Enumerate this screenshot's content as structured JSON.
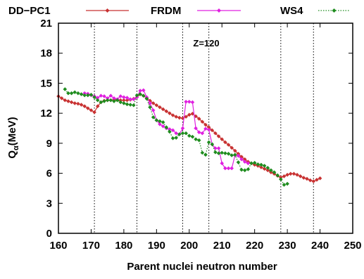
{
  "chart_data": {
    "type": "line",
    "annotation": "Z=120",
    "xlabel": "Parent nuclei neutron number",
    "ylabel_main": "Q",
    "ylabel_sub": "α",
    "ylabel_unit": "(MeV)",
    "xlim": [
      160,
      250
    ],
    "ylim": [
      0,
      21
    ],
    "xticks": [
      160,
      170,
      180,
      190,
      200,
      210,
      220,
      230,
      240,
      250
    ],
    "yticks": [
      0,
      3,
      6,
      9,
      12,
      15,
      18,
      21
    ],
    "shell_lines_x": [
      171,
      184,
      198,
      206,
      228,
      238
    ],
    "legend_position": "top",
    "series": [
      {
        "name": "DD−PC1",
        "color": "#c83232",
        "marker": "diamond",
        "line_style": "solid",
        "points": [
          [
            160,
            13.7
          ],
          [
            161,
            13.5
          ],
          [
            162,
            13.3
          ],
          [
            163,
            13.2
          ],
          [
            164,
            13.1
          ],
          [
            165,
            13.0
          ],
          [
            166,
            12.95
          ],
          [
            167,
            12.85
          ],
          [
            168,
            12.7
          ],
          [
            169,
            12.5
          ],
          [
            170,
            12.3
          ],
          [
            171,
            12.1
          ],
          [
            172,
            12.7
          ],
          [
            173,
            13.1
          ],
          [
            174,
            13.25
          ],
          [
            175,
            13.3
          ],
          [
            176,
            13.3
          ],
          [
            177,
            13.35
          ],
          [
            178,
            13.3
          ],
          [
            179,
            13.3
          ],
          [
            180,
            13.3
          ],
          [
            181,
            13.3
          ],
          [
            182,
            13.35
          ],
          [
            183,
            13.45
          ],
          [
            184,
            13.6
          ],
          [
            185,
            13.9
          ],
          [
            186,
            13.75
          ],
          [
            187,
            13.5
          ],
          [
            188,
            13.25
          ],
          [
            189,
            13.0
          ],
          [
            190,
            12.8
          ],
          [
            191,
            12.6
          ],
          [
            192,
            12.4
          ],
          [
            193,
            12.2
          ],
          [
            194,
            12.0
          ],
          [
            195,
            11.8
          ],
          [
            196,
            11.65
          ],
          [
            197,
            11.55
          ],
          [
            198,
            11.5
          ],
          [
            199,
            11.65
          ],
          [
            200,
            11.85
          ],
          [
            201,
            11.95
          ],
          [
            202,
            11.7
          ],
          [
            203,
            11.45
          ],
          [
            204,
            11.15
          ],
          [
            205,
            10.85
          ],
          [
            206,
            10.6
          ],
          [
            207,
            10.3
          ],
          [
            208,
            10.0
          ],
          [
            209,
            9.7
          ],
          [
            210,
            9.4
          ],
          [
            211,
            9.1
          ],
          [
            212,
            8.85
          ],
          [
            213,
            8.55
          ],
          [
            214,
            8.25
          ],
          [
            215,
            7.95
          ],
          [
            216,
            7.65
          ],
          [
            217,
            7.4
          ],
          [
            218,
            7.15
          ],
          [
            219,
            7.0
          ],
          [
            220,
            6.85
          ],
          [
            221,
            6.75
          ],
          [
            222,
            6.6
          ],
          [
            223,
            6.45
          ],
          [
            224,
            6.3
          ],
          [
            225,
            6.1
          ],
          [
            226,
            5.95
          ],
          [
            227,
            5.75
          ],
          [
            228,
            5.6
          ],
          [
            229,
            5.7
          ],
          [
            230,
            5.85
          ],
          [
            231,
            5.95
          ],
          [
            232,
            5.95
          ],
          [
            233,
            5.85
          ],
          [
            234,
            5.7
          ],
          [
            235,
            5.55
          ],
          [
            236,
            5.45
          ],
          [
            237,
            5.3
          ],
          [
            238,
            5.2
          ],
          [
            239,
            5.35
          ],
          [
            240,
            5.5
          ]
        ]
      },
      {
        "name": "FRDM",
        "color": "#e020e0",
        "marker": "diamond",
        "line_style": "solid",
        "points": [
          [
            168,
            14.0
          ],
          [
            169,
            13.95
          ],
          [
            170,
            13.8
          ],
          [
            171,
            13.7
          ],
          [
            172,
            13.55
          ],
          [
            173,
            13.75
          ],
          [
            174,
            13.7
          ],
          [
            175,
            13.5
          ],
          [
            176,
            13.75
          ],
          [
            177,
            13.5
          ],
          [
            178,
            13.4
          ],
          [
            179,
            13.7
          ],
          [
            180,
            13.6
          ],
          [
            181,
            13.55
          ],
          [
            182,
            13.4
          ],
          [
            183,
            13.4
          ],
          [
            184,
            13.6
          ],
          [
            185,
            14.25
          ],
          [
            186,
            14.3
          ],
          [
            187,
            13.6
          ],
          [
            188,
            13.0
          ],
          [
            189,
            12.3
          ],
          [
            190,
            11.3
          ],
          [
            191,
            10.9
          ],
          [
            192,
            10.7
          ],
          [
            193,
            10.5
          ],
          [
            194,
            10.4
          ],
          [
            195,
            10.3
          ],
          [
            196,
            10.0
          ],
          [
            197,
            9.9
          ],
          [
            198,
            10.5
          ],
          [
            199,
            13.15
          ],
          [
            200,
            13.15
          ],
          [
            201,
            13.1
          ],
          [
            202,
            10.5
          ],
          [
            203,
            10.1
          ],
          [
            204,
            10.0
          ],
          [
            205,
            10.45
          ],
          [
            206,
            10.35
          ],
          [
            207,
            8.9
          ],
          [
            208,
            8.5
          ],
          [
            209,
            8.5
          ],
          [
            210,
            7.0
          ],
          [
            211,
            6.5
          ],
          [
            212,
            6.5
          ],
          [
            213,
            6.5
          ],
          [
            214,
            7.8
          ],
          [
            215,
            7.75
          ],
          [
            216,
            7.4
          ],
          [
            217,
            7.15
          ],
          [
            218,
            7.0
          ]
        ]
      },
      {
        "name": "WS4",
        "color": "#1e8c1e",
        "marker": "diamond",
        "line_style": "dotted",
        "points": [
          [
            162,
            14.4
          ],
          [
            163,
            14.0
          ],
          [
            164,
            14.0
          ],
          [
            165,
            14.1
          ],
          [
            166,
            14.0
          ],
          [
            167,
            13.9
          ],
          [
            168,
            13.8
          ],
          [
            169,
            13.8
          ],
          [
            170,
            13.85
          ],
          [
            171,
            13.6
          ],
          [
            172,
            13.3
          ],
          [
            173,
            13.1
          ],
          [
            174,
            13.2
          ],
          [
            175,
            13.3
          ],
          [
            176,
            13.3
          ],
          [
            177,
            13.2
          ],
          [
            178,
            13.3
          ],
          [
            179,
            13.1
          ],
          [
            180,
            13.0
          ],
          [
            181,
            12.9
          ],
          [
            182,
            12.85
          ],
          [
            183,
            12.8
          ],
          [
            184,
            13.8
          ],
          [
            185,
            13.9
          ],
          [
            186,
            13.75
          ],
          [
            187,
            13.45
          ],
          [
            188,
            12.6
          ],
          [
            189,
            11.6
          ],
          [
            190,
            11.3
          ],
          [
            191,
            11.2
          ],
          [
            192,
            11.1
          ],
          [
            193,
            10.6
          ],
          [
            194,
            10.15
          ],
          [
            195,
            9.5
          ],
          [
            196,
            9.55
          ],
          [
            197,
            9.9
          ],
          [
            198,
            10.0
          ],
          [
            199,
            10.0
          ],
          [
            200,
            9.75
          ],
          [
            201,
            9.65
          ],
          [
            202,
            9.4
          ],
          [
            203,
            9.3
          ],
          [
            204,
            8.05
          ],
          [
            205,
            7.85
          ],
          [
            206,
            9.1
          ],
          [
            207,
            8.9
          ],
          [
            208,
            8.1
          ],
          [
            209,
            8.0
          ],
          [
            210,
            8.05
          ],
          [
            211,
            8.0
          ],
          [
            212,
            7.95
          ],
          [
            213,
            7.8
          ],
          [
            214,
            7.85
          ],
          [
            215,
            7.1
          ],
          [
            216,
            6.35
          ],
          [
            217,
            6.3
          ],
          [
            218,
            6.4
          ],
          [
            219,
            7.0
          ],
          [
            220,
            7.05
          ],
          [
            221,
            6.9
          ],
          [
            222,
            6.85
          ],
          [
            223,
            6.75
          ],
          [
            224,
            6.55
          ],
          [
            225,
            6.3
          ],
          [
            226,
            6.1
          ],
          [
            227,
            5.8
          ],
          [
            228,
            5.4
          ],
          [
            229,
            4.85
          ],
          [
            230,
            4.95
          ]
        ]
      }
    ]
  }
}
